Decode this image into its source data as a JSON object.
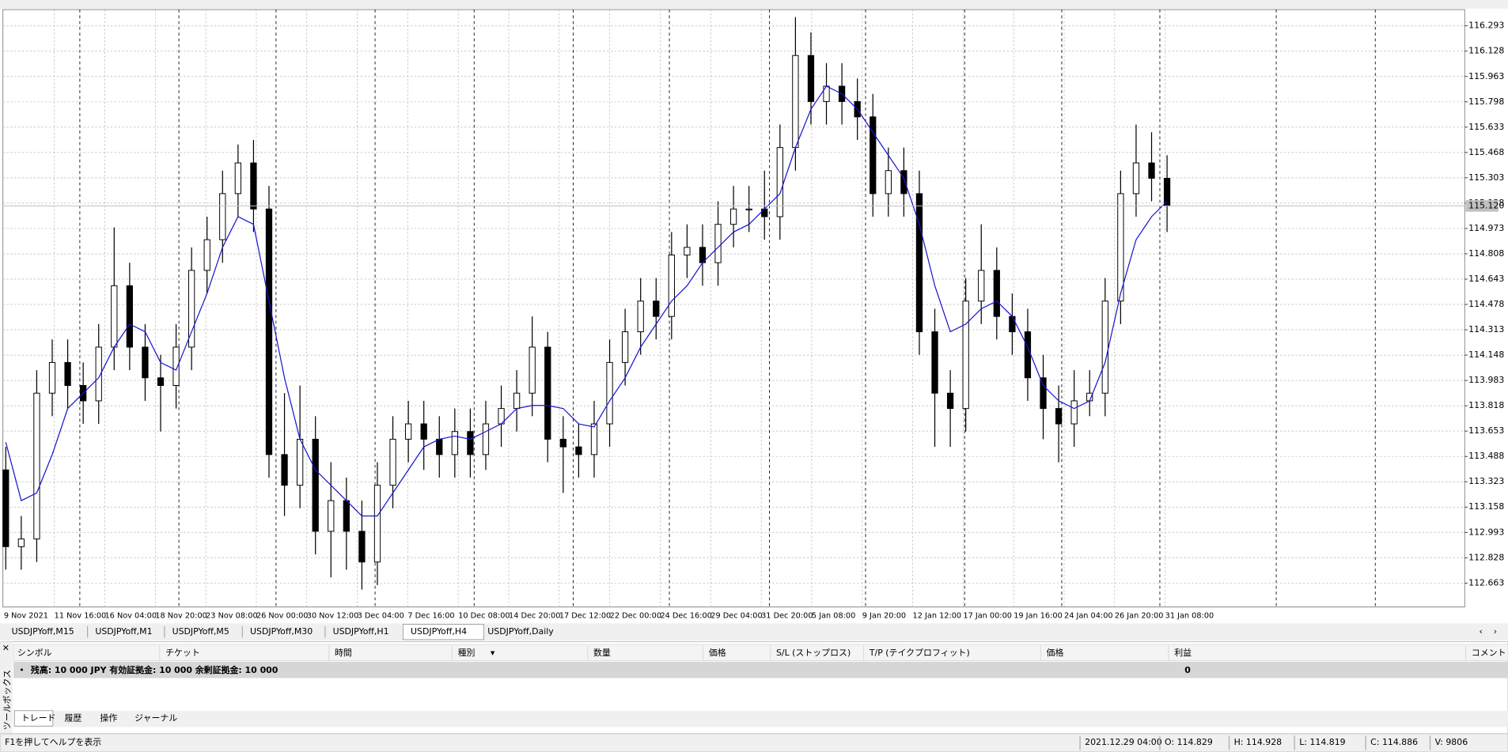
{
  "chart_data": {
    "type": "candlestick",
    "ylim": [
      112.507,
      116.399
    ],
    "yticks": [
      112.663,
      112.828,
      112.993,
      113.158,
      113.323,
      113.488,
      113.653,
      113.818,
      113.983,
      114.148,
      114.313,
      114.478,
      114.643,
      114.808,
      114.973,
      115.138,
      115.303,
      115.468,
      115.633,
      115.798,
      115.963,
      116.128,
      116.293
    ],
    "grid": true,
    "last_price": {
      "value": 115.12,
      "label": "115.120"
    },
    "xlabels": [
      "9 Nov 2021",
      "11 Nov 16:00",
      "16 Nov 04:00",
      "18 Nov 20:00",
      "23 Nov 08:00",
      "26 Nov 00:00",
      "30 Nov 12:00",
      "3 Dec 04:00",
      "7 Dec 16:00",
      "10 Dec 08:00",
      "14 Dec 20:00",
      "17 Dec 12:00",
      "22 Dec 00:00",
      "24 Dec 16:00",
      "29 Dec 04:00",
      "31 Dec 20:00",
      "5 Jan 08:00",
      "9 Jan 20:00",
      "12 Jan 12:00",
      "17 Jan 00:00",
      "19 Jan 16:00",
      "24 Jan 04:00",
      "26 Jan 20:00",
      "31 Jan 08:00"
    ],
    "open": [
      113.4,
      112.9,
      112.95,
      113.9,
      114.1,
      113.95,
      113.85,
      114.2,
      114.6,
      114.2,
      114.0,
      113.95,
      114.2,
      114.7,
      114.9,
      115.2,
      115.4,
      115.1,
      113.5,
      113.3,
      113.6,
      113.0,
      113.2,
      113.0,
      112.8,
      113.3,
      113.6,
      113.7,
      113.6,
      113.5,
      113.65,
      113.5,
      113.7,
      113.8,
      113.9,
      114.2,
      113.6,
      113.55,
      113.5,
      113.7,
      114.1,
      114.3,
      114.5,
      114.4,
      114.8,
      114.85,
      114.75,
      115.0,
      115.1,
      115.1,
      115.05,
      115.5,
      116.1,
      115.8,
      115.9,
      115.8,
      115.7,
      115.2,
      115.35,
      115.2,
      114.3,
      113.9,
      113.8,
      114.5,
      114.7,
      114.4,
      114.3,
      114.0,
      113.8,
      113.7,
      113.85,
      113.9,
      114.5,
      115.2,
      115.4,
      115.3
    ],
    "high": [
      113.55,
      113.1,
      114.05,
      114.25,
      114.25,
      114.1,
      114.35,
      114.98,
      114.75,
      114.35,
      114.15,
      114.35,
      114.85,
      115.05,
      115.35,
      115.52,
      115.55,
      115.25,
      113.9,
      113.95,
      113.75,
      113.45,
      113.35,
      113.2,
      113.45,
      113.75,
      113.85,
      113.85,
      113.75,
      113.8,
      113.8,
      113.85,
      113.95,
      114.05,
      114.4,
      114.3,
      113.75,
      113.7,
      113.85,
      114.25,
      114.45,
      114.65,
      114.65,
      114.95,
      115.0,
      115.0,
      115.15,
      115.25,
      115.25,
      115.35,
      115.65,
      116.35,
      116.25,
      116.05,
      116.05,
      115.95,
      115.85,
      115.5,
      115.5,
      115.35,
      114.45,
      114.05,
      114.65,
      115.0,
      114.85,
      114.55,
      114.45,
      114.15,
      113.95,
      114.05,
      114.05,
      114.65,
      115.35,
      115.65,
      115.6,
      115.45
    ],
    "low": [
      112.75,
      112.75,
      112.8,
      113.75,
      113.8,
      113.7,
      113.7,
      114.05,
      114.05,
      113.85,
      113.65,
      113.8,
      114.05,
      114.55,
      114.75,
      115.05,
      114.95,
      113.35,
      113.1,
      113.15,
      112.85,
      112.7,
      112.75,
      112.62,
      112.65,
      113.15,
      113.45,
      113.4,
      113.35,
      113.35,
      113.35,
      113.4,
      113.55,
      113.65,
      113.75,
      113.45,
      113.25,
      113.35,
      113.35,
      113.55,
      113.95,
      114.15,
      114.25,
      114.25,
      114.65,
      114.6,
      114.6,
      114.85,
      114.95,
      114.9,
      114.9,
      115.35,
      115.65,
      115.65,
      115.65,
      115.55,
      115.05,
      115.05,
      115.05,
      114.15,
      113.55,
      113.55,
      113.65,
      114.35,
      114.25,
      114.15,
      113.85,
      113.6,
      113.45,
      113.55,
      113.75,
      113.75,
      114.35,
      115.05,
      115.15,
      114.95
    ],
    "close": [
      112.9,
      112.95,
      113.9,
      114.1,
      113.95,
      113.85,
      114.2,
      114.6,
      114.2,
      114.0,
      113.95,
      114.2,
      114.7,
      114.9,
      115.2,
      115.4,
      115.1,
      113.5,
      113.3,
      113.6,
      113.0,
      113.2,
      113.0,
      112.8,
      113.3,
      113.6,
      113.7,
      113.6,
      113.5,
      113.65,
      113.5,
      113.7,
      113.8,
      113.9,
      114.2,
      113.6,
      113.55,
      113.5,
      113.7,
      114.1,
      114.3,
      114.5,
      114.4,
      114.8,
      114.85,
      114.75,
      115.0,
      115.1,
      115.1,
      115.05,
      115.5,
      116.1,
      115.8,
      115.9,
      115.8,
      115.7,
      115.2,
      115.35,
      115.2,
      114.3,
      113.9,
      113.8,
      114.5,
      114.7,
      114.4,
      114.3,
      114.0,
      113.8,
      113.7,
      113.85,
      113.9,
      114.5,
      115.2,
      115.4,
      115.3,
      115.12
    ],
    "ma_color": "#1515d0",
    "ma_values": [
      113.58,
      113.2,
      113.25,
      113.5,
      113.8,
      113.9,
      114.0,
      114.2,
      114.35,
      114.3,
      114.1,
      114.05,
      114.3,
      114.55,
      114.85,
      115.05,
      115.0,
      114.5,
      114.0,
      113.6,
      113.4,
      113.3,
      113.2,
      113.1,
      113.1,
      113.25,
      113.4,
      113.55,
      113.6,
      113.62,
      113.6,
      113.65,
      113.7,
      113.8,
      113.82,
      113.82,
      113.8,
      113.7,
      113.68,
      113.85,
      114.0,
      114.2,
      114.35,
      114.5,
      114.6,
      114.75,
      114.85,
      114.95,
      115.0,
      115.1,
      115.2,
      115.5,
      115.75,
      115.9,
      115.85,
      115.75,
      115.6,
      115.45,
      115.3,
      115.0,
      114.6,
      114.3,
      114.35,
      114.45,
      114.5,
      114.4,
      114.2,
      113.95,
      113.85,
      113.8,
      113.85,
      114.1,
      114.55,
      114.9,
      115.05,
      115.15
    ]
  },
  "chart_tabs": [
    "USDJPYoff,M15",
    "USDJPYoff,M1",
    "USDJPYoff,M5",
    "USDJPYoff,M30",
    "USDJPYoff,H1",
    "USDJPYoff,H4",
    "USDJPYoff,Daily"
  ],
  "terminal": {
    "side_title": "ツールボックス",
    "headers": [
      "シンボル",
      "チケット",
      "時間",
      "種別",
      "数量",
      "価格",
      "S/L (ストップロス)",
      "T/P (テイクプロフィット)",
      "価格",
      "利益",
      "コメント"
    ],
    "balance_row": "残高: 10 000 JPY  有効証拠金: 10 000  余剰証拠金: 10 000",
    "balance_profit": "0",
    "tabs": [
      "トレード",
      "履歴",
      "操作",
      "ジャーナル"
    ]
  },
  "status_bar": {
    "help": "F1を押してヘルプを表示",
    "time": "2021.12.29 04:00",
    "open": "O: 114.829",
    "high": "H: 114.928",
    "low": "L: 114.819",
    "close": "C: 114.886",
    "volume": "V: 9806"
  }
}
